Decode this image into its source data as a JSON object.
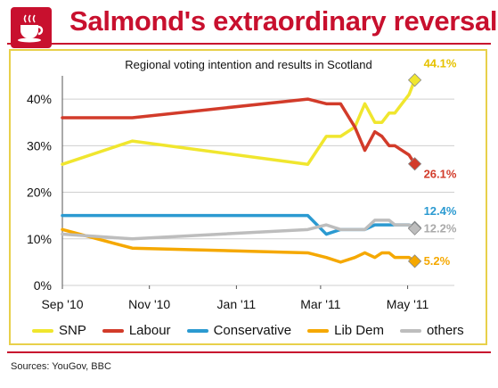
{
  "header": {
    "title": "Salmond's extraordinary reversal"
  },
  "footer": {
    "source": "Sources: YouGov, BBC"
  },
  "colors": {
    "brand": "#c8102e",
    "frame": "#e8d04a",
    "snp": "#f0e62e",
    "labour": "#d23b2a",
    "conservative": "#2b9ad1",
    "libdem": "#f5a800",
    "others": "#bdbdbd"
  },
  "chart_data": {
    "type": "line",
    "title": "Regional voting intention and results in Scotland",
    "xlabel": "",
    "ylabel": "",
    "x_tick_labels": [
      "Sep '10",
      "Nov '10",
      "Jan '11",
      "Mar '11",
      "May '11"
    ],
    "y_tick_labels": [
      "0%",
      "10%",
      "20%",
      "30%",
      "40%"
    ],
    "ylim": [
      0,
      45
    ],
    "grid": "horizontal",
    "legend": "bottom",
    "x": [
      "2010-09-01",
      "2010-10-20",
      "2011-02-20",
      "2011-03-05",
      "2011-03-15",
      "2011-03-25",
      "2011-04-01",
      "2011-04-08",
      "2011-04-13",
      "2011-04-18",
      "2011-04-22",
      "2011-04-27",
      "2011-05-02",
      "2011-05-06"
    ],
    "series": [
      {
        "name": "SNP",
        "color": "#f0e62e",
        "values": [
          26,
          31,
          26,
          32,
          32,
          34,
          39,
          35,
          35,
          37,
          37,
          39,
          41,
          44.1
        ]
      },
      {
        "name": "Labour",
        "color": "#d23b2a",
        "values": [
          36,
          36,
          40,
          39,
          39,
          34,
          29,
          33,
          32,
          30,
          30,
          29,
          28,
          26.1
        ]
      },
      {
        "name": "Conservative",
        "color": "#2b9ad1",
        "values": [
          15,
          15,
          15,
          11,
          12,
          12,
          12,
          13,
          13,
          13,
          13,
          13,
          13,
          12.4
        ]
      },
      {
        "name": "Lib Dem",
        "color": "#f5a800",
        "values": [
          12,
          8,
          7,
          6,
          5,
          6,
          7,
          6,
          7,
          7,
          6,
          6,
          6,
          5.2
        ]
      },
      {
        "name": "others",
        "color": "#bdbdbd",
        "values": [
          11,
          10,
          12,
          13,
          12,
          12,
          12,
          14,
          14,
          14,
          13,
          13,
          13,
          12.2
        ]
      }
    ],
    "end_labels": [
      "44.1%",
      "26.1%",
      "12.4%",
      "5.2%",
      "12.2%"
    ]
  }
}
